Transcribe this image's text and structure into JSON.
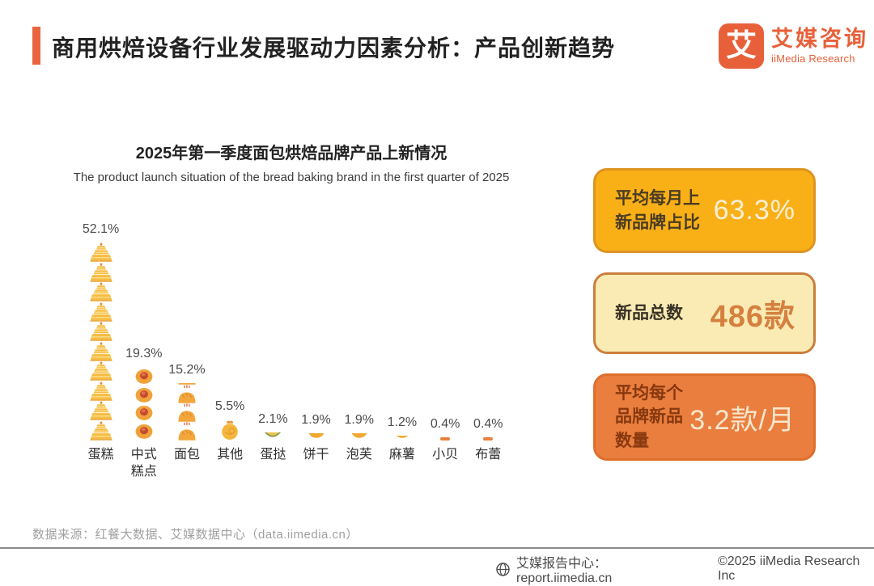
{
  "header": {
    "title": "商用烘焙设备行业发展驱动力因素分析：产品创新趋势",
    "logo": {
      "glyph": "艾",
      "name_cn": "艾媒咨询",
      "name_en": "iiMedia Research"
    }
  },
  "colors": {
    "accent_orange": "#E8603A",
    "pictogram_gold": "#F2A93C"
  },
  "chart_data": {
    "type": "bar",
    "style": "pictogram",
    "title": "2025年第一季度面包烘焙品牌产品上新情况",
    "subtitle": "The product launch situation of the bread baking brand in the first quarter of 2025",
    "categories": [
      "蛋糕",
      "中式糕点",
      "面包",
      "其他",
      "蛋挞",
      "饼干",
      "泡芙",
      "麻薯",
      "小贝",
      "布蕾"
    ],
    "values": [
      52.1,
      19.3,
      15.2,
      5.5,
      2.1,
      1.9,
      1.9,
      1.2,
      0.4,
      0.4
    ],
    "value_labels": [
      "52.1%",
      "19.3%",
      "15.2%",
      "5.5%",
      "2.1%",
      "1.9%",
      "1.9%",
      "1.2%",
      "0.4%",
      "0.4%"
    ],
    "icons": [
      "cake-icon",
      "stuffed-bun-icon",
      "bread-icon",
      "pouch-icon",
      "tart-icon",
      "cookie-icon",
      "puff-icon",
      "mochi-icon",
      "shell-icon",
      "brulee-icon"
    ],
    "unit": "%",
    "ylim": [
      0,
      55
    ],
    "grid": false,
    "legend": false
  },
  "stat_cards": [
    {
      "label": "平均每月上新品牌占比",
      "value": "63.3%",
      "bg": "#F9B017",
      "border": "#DD9421",
      "label_color": "#4A3C22",
      "value_color": "#F8EFD6"
    },
    {
      "label": "新品总数",
      "value": "486款",
      "bg": "#FAEBB4",
      "border": "#CB7F3E",
      "label_color": "#383125",
      "value_color": "#D5803F"
    },
    {
      "label": "平均每个品牌新品数量",
      "value": "3.2款/月",
      "bg": "#EA7E3E",
      "border": "#DE6F2D",
      "label_color": "#87380F",
      "value_color": "#F8E7CE"
    }
  ],
  "source_note": "数据来源：红餐大数据、艾媒数据中心（data.iimedia.cn）",
  "footer": {
    "report_center": "艾媒报告中心：report.iimedia.cn",
    "copyright": "©2025  iiMedia Research  Inc"
  }
}
